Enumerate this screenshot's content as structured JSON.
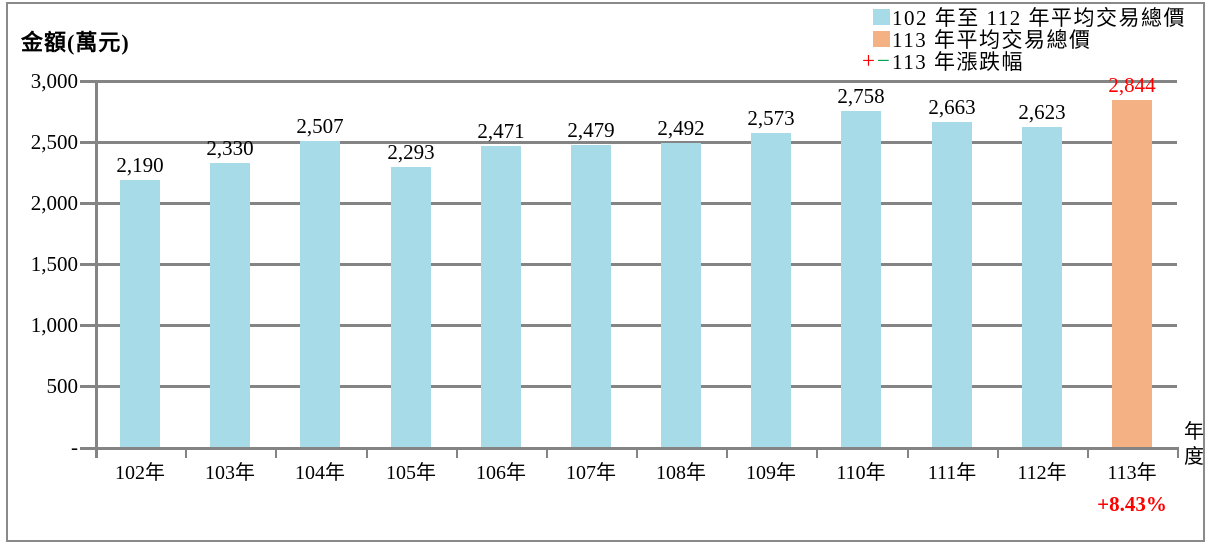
{
  "chart_data": {
    "type": "bar",
    "ylabel": "金額(萬元)",
    "xlabel": "年度",
    "categories": [
      "102年",
      "103年",
      "104年",
      "105年",
      "106年",
      "107年",
      "108年",
      "109年",
      "110年",
      "111年",
      "112年",
      "113年"
    ],
    "values": [
      2190,
      2330,
      2507,
      2293,
      2471,
      2479,
      2492,
      2573,
      2758,
      2663,
      2623,
      2844
    ],
    "value_labels": [
      "2,190",
      "2,330",
      "2,507",
      "2,293",
      "2,471",
      "2,479",
      "2,492",
      "2,573",
      "2,758",
      "2,663",
      "2,623",
      "2,844"
    ],
    "ylim": [
      0,
      3000
    ],
    "ytick_step": 500,
    "ytick_labels": [
      "-",
      "500",
      "1,000",
      "1,500",
      "2,000",
      "2,500",
      "3,000"
    ],
    "grid": true,
    "legend_position": "top-right",
    "legend": [
      {
        "label": "102 年至 112 年平均交易總價",
        "marker": "square",
        "color": "#a6dbe7"
      },
      {
        "label": "113 年平均交易總價",
        "marker": "square",
        "color": "#f4b183"
      },
      {
        "label": "113 年漲跌幅",
        "marker": "plus-minus",
        "plus_symbol": "+",
        "minus_symbol": "−",
        "plus_color": "#ff0000",
        "minus_color": "#00a050"
      }
    ],
    "highlight_index": 11,
    "annotation": {
      "text": "+8.43%",
      "color": "#ff0000"
    },
    "colors": {
      "bar": "#a6dbe7",
      "bar_highlight": "#f4b183",
      "label": "#000000",
      "label_highlight": "#ff0000",
      "grid": "#848484",
      "axis": "#848484"
    }
  }
}
